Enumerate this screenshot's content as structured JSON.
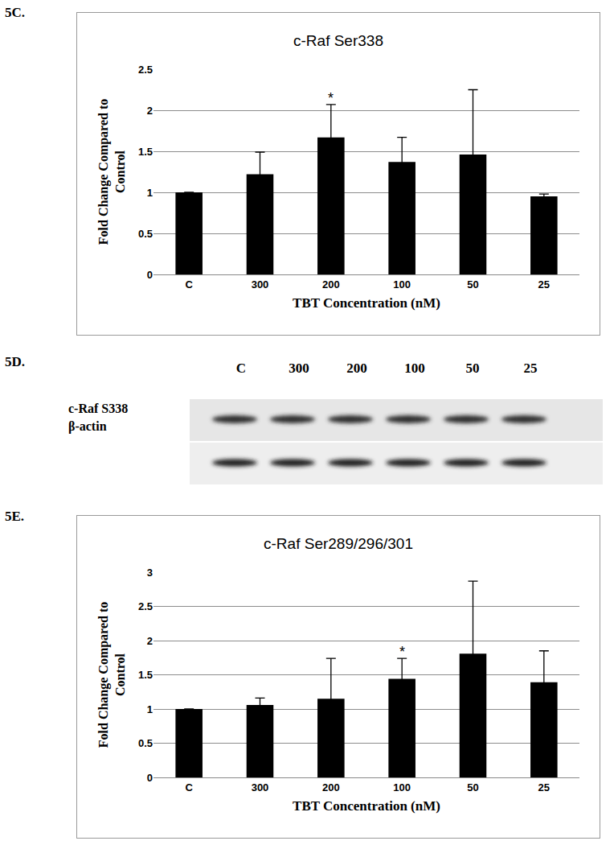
{
  "panel_labels": [
    "5C.",
    "5D.",
    "5E."
  ],
  "chart_data": [
    {
      "type": "bar",
      "title": "c-Raf Ser338",
      "x_label": "TBT Concentration (nM)",
      "y_label": "Fold Change Compared to Control",
      "categories": [
        "C",
        "300",
        "200",
        "100",
        "50",
        "25"
      ],
      "values": [
        1.0,
        1.22,
        1.67,
        1.37,
        1.46,
        0.95
      ],
      "errors": [
        0,
        0.27,
        0.4,
        0.3,
        0.79,
        0.03
      ],
      "color": "#000000",
      "ylim": [
        0,
        2.5
      ],
      "yticks": [
        0,
        0.5,
        1,
        1.5,
        2,
        2.5
      ],
      "grid": true,
      "annotations": [
        {
          "category": "200",
          "text": "*"
        }
      ]
    },
    {
      "type": "bar",
      "title": "c-Raf Ser289/296/301",
      "x_label": "TBT Concentration (nM)",
      "y_label": "Fold Change Compared to Control",
      "categories": [
        "C",
        "300",
        "200",
        "100",
        "50",
        "25"
      ],
      "values": [
        1.0,
        1.06,
        1.15,
        1.44,
        1.81,
        1.39
      ],
      "errors": [
        0,
        0.1,
        0.59,
        0.3,
        1.06,
        0.46
      ],
      "color": "#000000",
      "ylim": [
        0,
        3
      ],
      "yticks": [
        0,
        0.5,
        1,
        1.5,
        2,
        2.5,
        3
      ],
      "grid": true,
      "annotations": [
        {
          "category": "100",
          "text": "*"
        }
      ]
    }
  ],
  "blot": {
    "columns": [
      "C",
      "300",
      "200",
      "100",
      "50",
      "25"
    ],
    "rows": [
      "c-Raf S338",
      "β-actin"
    ]
  }
}
